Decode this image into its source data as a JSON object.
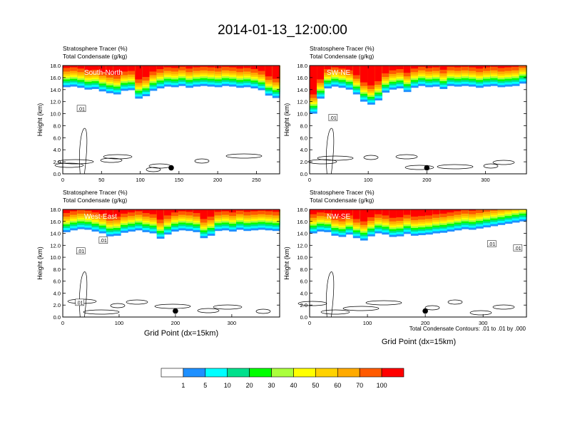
{
  "title": "2014-01-13_12:00:00",
  "var_label_1": "Stratosphere Tracer   (%)",
  "var_label_2": "Total Condensate   (g/kg)",
  "ylabel": "Height (km)",
  "xlabel": "Grid Point (dx=15km)",
  "contour_note": "Total Condensate Contours: .01 to .01 by .000",
  "marker_color": "#000000",
  "colorbar": {
    "colors": [
      "#ffffff",
      "#1e90ff",
      "#00ffff",
      "#00e08c",
      "#00ff00",
      "#aaff3c",
      "#ffff00",
      "#ffd200",
      "#ffaa00",
      "#ff5a00",
      "#ff0000"
    ],
    "labels": [
      "1",
      "5",
      "10",
      "20",
      "30",
      "40",
      "50",
      "60",
      "70",
      "100"
    ]
  },
  "chart_data": [
    {
      "type": "heatmap",
      "panel": "South-North",
      "label": "South-North",
      "xlim": [
        0,
        280
      ],
      "xticks": [
        0,
        50,
        100,
        150,
        200,
        250
      ],
      "ylim": [
        0,
        18
      ],
      "yticks": [
        "0.0",
        "2.0",
        "4.0",
        "6.0",
        "8.0",
        "10.0",
        "12.0",
        "14.0",
        "16.0",
        "18.0"
      ],
      "marker": {
        "x": 140,
        "y": 1.0
      },
      "contour_labels": [
        {
          "text": ".01",
          "x": 24,
          "y": 10.8
        }
      ],
      "tracer_bottom_km": [
        14.4,
        14.5,
        14.3,
        14.0,
        14.1,
        13.7,
        13.4,
        13.2,
        13.8,
        13.9,
        12.5,
        12.9,
        13.8,
        14.2,
        14.5,
        14.4,
        14.6,
        14.3,
        14.5,
        14.6,
        14.5,
        14.4,
        14.6,
        14.5,
        14.3,
        14.4,
        14.2,
        13.9,
        13.0,
        12.6
      ]
    },
    {
      "type": "heatmap",
      "panel": "SW-NE",
      "label": "SW-NE",
      "xlim": [
        0,
        370
      ],
      "xticks": [
        0,
        100,
        200,
        300
      ],
      "ylim": [
        0,
        18
      ],
      "yticks": [
        "0.0",
        "2.0",
        "4.0",
        "6.0",
        "8.0",
        "10.0",
        "12.0",
        "14.0",
        "16.0",
        "18.0"
      ],
      "marker": {
        "x": 200,
        "y": 1.0
      },
      "contour_labels": [
        {
          "text": ".01",
          "x": 40,
          "y": 9.3
        }
      ],
      "tracer_bottom_km": [
        10.0,
        12.5,
        14.2,
        14.5,
        14.3,
        14.0,
        13.2,
        12.0,
        11.5,
        12.2,
        13.5,
        14.0,
        14.2,
        13.6,
        14.3,
        14.6,
        14.4,
        14.5,
        14.1,
        14.6,
        14.5,
        14.6,
        14.5,
        14.3,
        14.5,
        14.6,
        14.4,
        14.5,
        14.6,
        15.0
      ]
    },
    {
      "type": "heatmap",
      "panel": "West-East",
      "label": "West-East",
      "xlim": [
        0,
        385
      ],
      "xticks": [
        0,
        100,
        200,
        300
      ],
      "ylim": [
        0,
        18
      ],
      "yticks": [
        "0.0",
        "2.0",
        "4.0",
        "6.0",
        "8.0",
        "10.0",
        "12.0",
        "14.0",
        "16.0",
        "18.0"
      ],
      "marker": {
        "x": 200,
        "y": 1.0
      },
      "contour_labels": [
        {
          "text": ".01",
          "x": 32,
          "y": 11.0
        },
        {
          "text": ".01",
          "x": 72,
          "y": 12.8
        },
        {
          "text": ".01",
          "x": 30,
          "y": 2.4
        }
      ],
      "tracer_bottom_km": [
        14.2,
        14.5,
        14.7,
        14.6,
        14.3,
        14.0,
        13.5,
        13.6,
        14.1,
        14.3,
        14.5,
        14.2,
        14.0,
        13.1,
        13.8,
        14.3,
        14.5,
        14.4,
        14.2,
        13.2,
        13.6,
        14.4,
        14.5,
        14.3,
        14.6,
        14.4,
        14.5,
        14.6,
        14.5,
        14.4
      ]
    },
    {
      "type": "heatmap",
      "panel": "NW-SE",
      "label": "NW-SE",
      "xlim": [
        0,
        375
      ],
      "xticks": [
        0,
        100,
        200,
        300
      ],
      "ylim": [
        0,
        18
      ],
      "yticks": [
        "0.0",
        "2.0",
        "4.0",
        "6.0",
        "8.0",
        "10.0",
        "12.0",
        "14.0",
        "16.0",
        "18.0"
      ],
      "marker": {
        "x": 200,
        "y": 1.0
      },
      "contour_labels": [
        {
          "text": ".01",
          "x": 315,
          "y": 12.2
        },
        {
          "text": ".01",
          "x": 360,
          "y": 11.5
        }
      ],
      "tracer_bottom_km": [
        14.0,
        14.3,
        14.2,
        13.6,
        13.4,
        13.8,
        13.2,
        12.8,
        13.5,
        14.0,
        13.8,
        13.4,
        13.5,
        13.9,
        13.6,
        13.7,
        13.8,
        14.0,
        14.1,
        14.3,
        14.5,
        14.7,
        14.6,
        14.8,
        15.0,
        15.2,
        15.4,
        15.6,
        15.8,
        16.0
      ]
    }
  ]
}
